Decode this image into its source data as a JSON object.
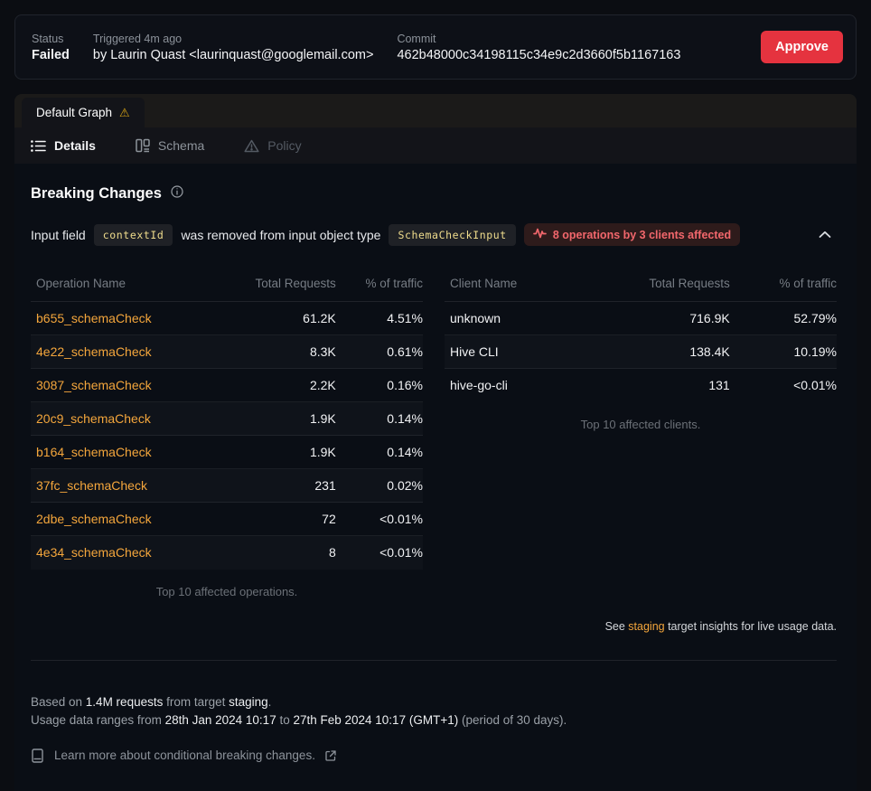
{
  "header": {
    "status_label": "Status",
    "status_value": "Failed",
    "triggered_label": "Triggered 4m ago",
    "triggered_by": "by Laurin Quast <laurinquast@googlemail.com>",
    "commit_label": "Commit",
    "commit_value": "462b48000c34198115c34e9c2d3660f5b1167163",
    "approve_label": "Approve"
  },
  "tabs": {
    "graph_tab_label": "Default Graph",
    "sub_tabs": [
      {
        "label": "Details"
      },
      {
        "label": "Schema"
      },
      {
        "label": "Policy"
      }
    ]
  },
  "breaking": {
    "title": "Breaking Changes",
    "change": {
      "prefix": "Input field",
      "field_code": "contextId",
      "middle": "was removed from input object type",
      "type_code": "SchemaCheckInput",
      "affected_badge": "8 operations by 3 clients affected"
    }
  },
  "operations_table": {
    "headers": [
      "Operation Name",
      "Total Requests",
      "% of traffic"
    ],
    "rows": [
      [
        "b655_schemaCheck",
        "61.2K",
        "4.51%"
      ],
      [
        "4e22_schemaCheck",
        "8.3K",
        "0.61%"
      ],
      [
        "3087_schemaCheck",
        "2.2K",
        "0.16%"
      ],
      [
        "20c9_schemaCheck",
        "1.9K",
        "0.14%"
      ],
      [
        "b164_schemaCheck",
        "1.9K",
        "0.14%"
      ],
      [
        "37fc_schemaCheck",
        "231",
        "0.02%"
      ],
      [
        "2dbe_schemaCheck",
        "72",
        "<0.01%"
      ],
      [
        "4e34_schemaCheck",
        "8",
        "<0.01%"
      ]
    ],
    "footer": "Top 10 affected operations."
  },
  "clients_table": {
    "headers": [
      "Client Name",
      "Total Requests",
      "% of traffic"
    ],
    "rows": [
      [
        "unknown",
        "716.9K",
        "52.79%"
      ],
      [
        "Hive CLI",
        "138.4K",
        "10.19%"
      ],
      [
        "hive-go-cli",
        "131",
        "<0.01%"
      ]
    ],
    "footer": "Top 10 affected clients."
  },
  "insights_note": {
    "prefix": "See ",
    "link": "staging",
    "suffix": " target insights for live usage data."
  },
  "footer": {
    "based_prefix": "Based on ",
    "requests": "1.4M requests",
    "from_target": " from target ",
    "target_name": "staging",
    "period_dot": ".",
    "range_prefix": "Usage data ranges from ",
    "date_start": "28th Jan 2024 10:17",
    "to_word": " to ",
    "date_end": "27th Feb 2024 10:17 (GMT+1)",
    "range_suffix": " (period of 30 days).",
    "learn_more": "Learn more about conditional breaking changes."
  },
  "colors": {
    "accent_orange": "#f4a63c",
    "danger_red": "#e5333f",
    "warning_yellow": "#d9a514",
    "code_yellow": "#f0dd8d",
    "affected_red": "#f2676c",
    "panel_bg": "#0a0e15"
  }
}
